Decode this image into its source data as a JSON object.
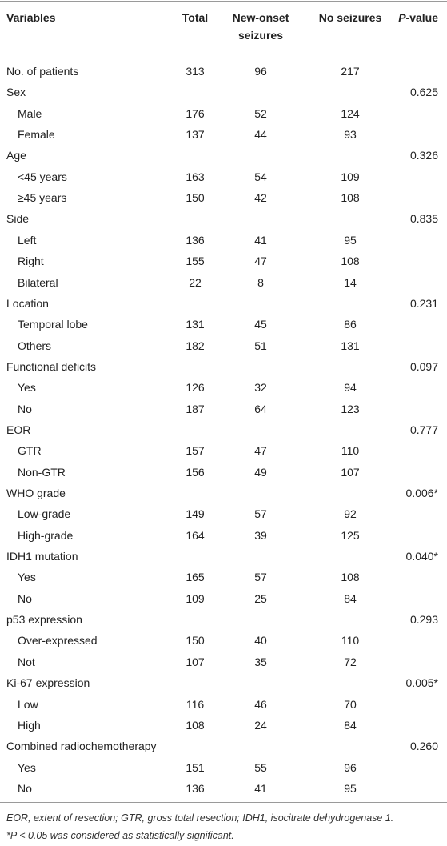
{
  "table": {
    "header": [
      "Variables",
      "Total",
      "New-onset seizures",
      "No seizures",
      "P-value"
    ],
    "summary": [
      "No. of patients",
      313,
      96,
      217
    ],
    "groups": [
      {
        "label": "Sex",
        "p_value": "0.625",
        "rows": [
          [
            "Male",
            176,
            52,
            124
          ],
          [
            "Female",
            137,
            44,
            93
          ]
        ]
      },
      {
        "label": "Age",
        "p_value": "0.326",
        "rows": [
          [
            "<45 years",
            163,
            54,
            109
          ],
          [
            "≥45 years",
            150,
            42,
            108
          ]
        ]
      },
      {
        "label": "Side",
        "p_value": "0.835",
        "rows": [
          [
            "Left",
            136,
            41,
            95
          ],
          [
            "Right",
            155,
            47,
            108
          ],
          [
            "Bilateral",
            22,
            8,
            14
          ]
        ]
      },
      {
        "label": "Location",
        "p_value": "0.231",
        "rows": [
          [
            "Temporal lobe",
            131,
            45,
            86
          ],
          [
            "Others",
            182,
            51,
            131
          ]
        ]
      },
      {
        "label": "Functional deficits",
        "p_value": "0.097",
        "rows": [
          [
            "Yes",
            126,
            32,
            94
          ],
          [
            "No",
            187,
            64,
            123
          ]
        ]
      },
      {
        "label": "EOR",
        "p_value": "0.777",
        "rows": [
          [
            "GTR",
            157,
            47,
            110
          ],
          [
            "Non-GTR",
            156,
            49,
            107
          ]
        ]
      },
      {
        "label": "WHO grade",
        "p_value": "0.006*",
        "rows": [
          [
            "Low-grade",
            149,
            57,
            92
          ],
          [
            "High-grade",
            164,
            39,
            125
          ]
        ]
      },
      {
        "label": "IDH1 mutation",
        "p_value": "0.040*",
        "rows": [
          [
            "Yes",
            165,
            57,
            108
          ],
          [
            "No",
            109,
            25,
            84
          ]
        ]
      },
      {
        "label": "p53 expression",
        "p_value": "0.293",
        "rows": [
          [
            "Over-expressed",
            150,
            40,
            110
          ],
          [
            "Not",
            107,
            35,
            72
          ]
        ]
      },
      {
        "label": "Ki-67 expression",
        "p_value": "0.005*",
        "rows": [
          [
            "Low",
            116,
            46,
            70
          ],
          [
            "High",
            108,
            24,
            84
          ]
        ]
      },
      {
        "label": "Combined radiochemotherapy",
        "p_value": "0.260",
        "rows": [
          [
            "Yes",
            151,
            55,
            96
          ],
          [
            "No",
            136,
            41,
            95
          ]
        ]
      }
    ]
  },
  "footnotes": [
    "EOR, extent of resection; GTR, gross total resection; IDH1, isocitrate dehydrogenase 1.",
    "*P < 0.05 was considered as statistically significant."
  ]
}
